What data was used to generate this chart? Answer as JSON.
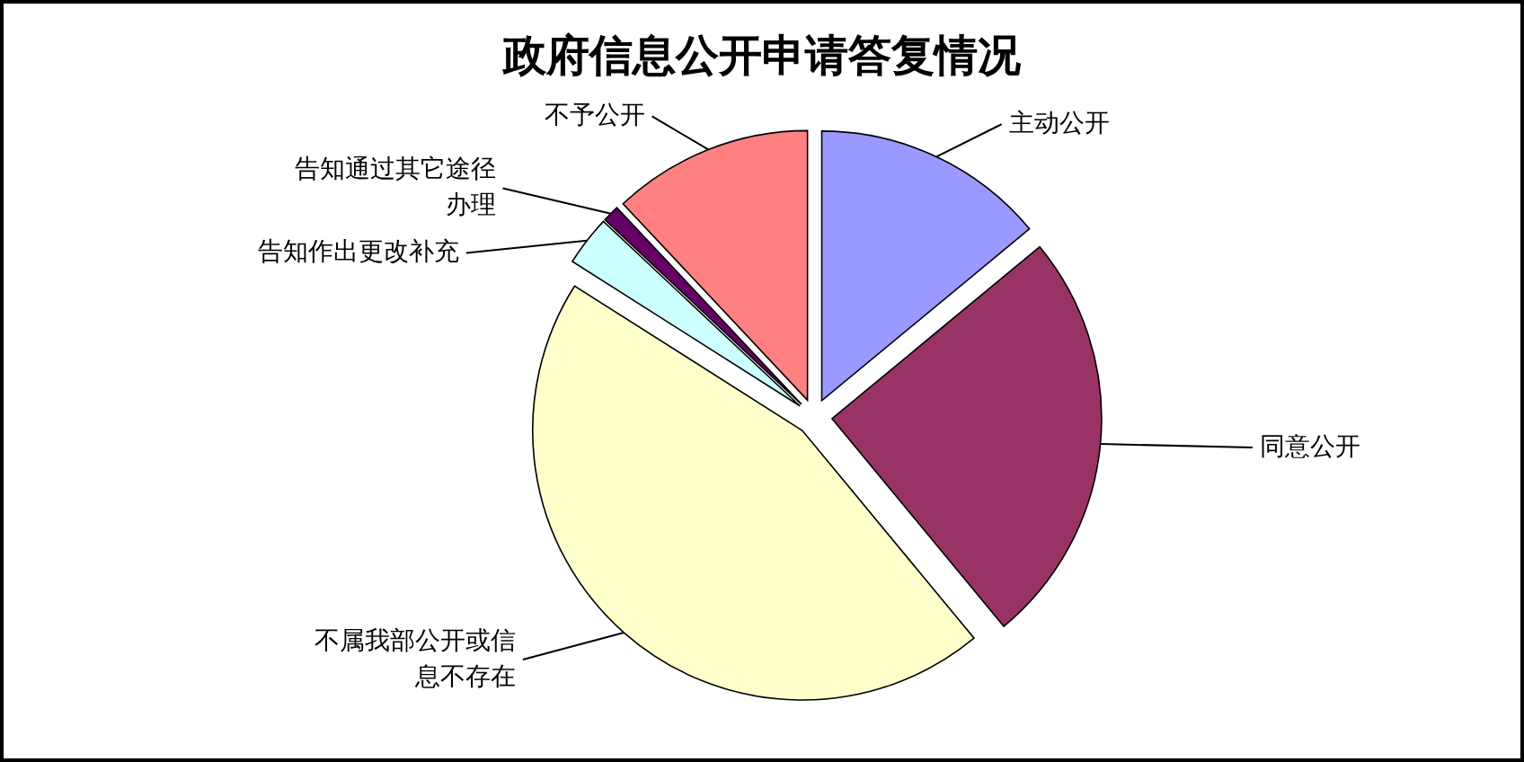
{
  "chart_data": {
    "type": "pie",
    "title": "政府信息公开申请答复情况",
    "categories": [
      "主动公开",
      "同意公开",
      "不属我部公开或信息不存在",
      "告知作出更改补充",
      "告知通过其它途径办理",
      "不予公开"
    ],
    "values": [
      14,
      25,
      45,
      3,
      1,
      12
    ],
    "colors": [
      "#9999ff",
      "#993366",
      "#ffffcc",
      "#ccffff",
      "#660066",
      "#ff8080"
    ]
  }
}
